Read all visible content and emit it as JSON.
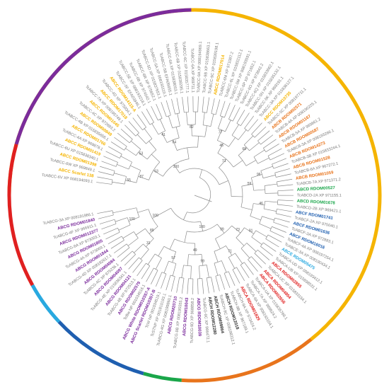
{
  "colors": {
    "tree": "#8c8c8c",
    "gray_label": "#7a7a7a",
    "black_label": "#333333",
    "ABCA": "#e02020",
    "ABCB": "#e8741c",
    "ABCC": "#f5b400",
    "ABCD": "#1aa64a",
    "ABCE": "#29a9e0",
    "ABCF": "#1f5fb0",
    "ABCG": "#7b2c9c",
    "ABCH": "#333333"
  },
  "arcs": [
    {
      "family": "ABCC",
      "start": -90,
      "end": 141
    },
    {
      "family": "ABCB",
      "start": 141,
      "end": 184
    },
    {
      "family": "ABCD",
      "start": 184,
      "end": 196
    },
    {
      "family": "ABCF",
      "start": 196,
      "end": 227
    },
    {
      "family": "ABCE",
      "start": 227,
      "end": 241
    },
    {
      "family": "ABCA",
      "start": 241,
      "end": 286
    },
    {
      "family": "ABCG",
      "start": 286,
      "end": 359
    }
  ],
  "leaves": [
    {
      "text": "TcABCC-6V XP 008194093.1",
      "family": "gray"
    },
    {
      "text": "ABCC Scarlet 138",
      "family": "ABCC",
      "bold": true
    },
    {
      "text": "TcABCC-6W XP 969849.1",
      "family": "gray"
    },
    {
      "text": "ABCC RDOM01398",
      "family": "ABCC",
      "bold": true
    },
    {
      "text": "TcABCC-6U XP 015838340.1",
      "family": "gray"
    },
    {
      "text": "ABCC RDOM01419",
      "family": "ABCC",
      "bold": true
    },
    {
      "text": "TcABCC-4A XP 969878.1",
      "family": "gray"
    },
    {
      "text": "ABCC RDOM01766",
      "family": "ABCC",
      "bold": true
    },
    {
      "text": "TcABCC-4B XP 015835656.1",
      "family": "gray"
    },
    {
      "text": "ABCC RDOM00849",
      "family": "ABCC",
      "bold": true
    },
    {
      "text": "TcABCC-4C XP 972693.2",
      "family": "gray"
    },
    {
      "text": "ABCC RDOM01045",
      "family": "ABCC",
      "bold": true
    },
    {
      "text": "TcABCC-7A XP 008195749.1",
      "family": "gray"
    },
    {
      "text": "ABCC RDOM17018",
      "family": "ABCC",
      "bold": true
    },
    {
      "text": "TcABCC-4D XP 975034.1",
      "family": "gray"
    },
    {
      "text": "ABCC RDOM14115-A",
      "family": "ABCC",
      "bold": true
    },
    {
      "text": "TcABCC-5F EFA03946.1",
      "family": "gray"
    },
    {
      "text": "TcABCC-5E XP 008193218.1",
      "family": "gray"
    },
    {
      "text": "TcABCC-6B XP 974042.1",
      "family": "gray"
    },
    {
      "text": "TcABCC-6R XP 975652.1",
      "family": "gray"
    },
    {
      "text": "TcABCC-5D XP 015837651.1",
      "family": "gray"
    },
    {
      "text": "TcABCC-5A XP 008193119.1",
      "family": "gray"
    },
    {
      "text": "TcABCC-5B EFA05655.1",
      "family": "gray"
    },
    {
      "text": "TcABCC-6A XP 015838053.1",
      "family": "gray"
    },
    {
      "text": "TcABCC-6B XP 015838295.1",
      "family": "gray"
    },
    {
      "text": "TcABCC-6C XP 015835777.1",
      "family": "gray"
    },
    {
      "text": "TcABCC-6A XP 969711.1",
      "family": "gray"
    },
    {
      "text": "TcABCC-9A XP 008194969.1",
      "family": "gray"
    },
    {
      "text": "TcABCC-9B XP 015838663.1",
      "family": "gray"
    },
    {
      "text": "TcABCC-9C XP 015839198.1",
      "family": "gray"
    },
    {
      "text": "ABCC RDOM017014",
      "family": "ABCC",
      "bold": true
    },
    {
      "text": "TcABCC-6M XP 971087.2",
      "family": "gray"
    },
    {
      "text": "TcABCC-6L XP 015832112.1",
      "family": "gray"
    },
    {
      "text": "TcABCC-5M XP 008193591.1",
      "family": "gray"
    },
    {
      "text": "TcABCC-6P XP 971652.1",
      "family": "gray"
    },
    {
      "text": "TcABCC-6O XP 973842.2",
      "family": "gray"
    },
    {
      "text": "TcABCC-6Q XP 015833662.1",
      "family": "gray"
    },
    {
      "text": "TcABCC-5N XP 015835132.1",
      "family": "gray"
    },
    {
      "text": "TcABCC-5K XP 969191.1",
      "family": "gray"
    },
    {
      "text": "TcABCC-3A XP 015836127.1",
      "family": "gray"
    },
    {
      "text": "ABCC RDOM10735",
      "family": "ABCC",
      "bold": true
    },
    {
      "text": "TcABCC-5C XP 008197711.1",
      "family": "gray"
    },
    {
      "text": "ABCB RDOM02571",
      "family": "ABCB",
      "bold": true
    },
    {
      "text": "TcABCB-4A XP 008190225.1",
      "family": "gray"
    },
    {
      "text": "ABCB RDOM01167",
      "family": "ABCB",
      "bold": true
    },
    {
      "text": "TcABCB-5A XP 969861.2",
      "family": "gray"
    },
    {
      "text": "ABCB RDOM00587",
      "family": "ABCB",
      "bold": true
    },
    {
      "text": "TcABCB-3A XP 008193266.1",
      "family": "gray"
    },
    {
      "text": "ABCB RDOM14273",
      "family": "ABCB",
      "bold": true
    },
    {
      "text": "TcABCB-3B XP 015833244.1",
      "family": "gray"
    },
    {
      "text": "ABCB RDOM01528",
      "family": "ABCB",
      "bold": true
    },
    {
      "text": "TcABCB-6A XP 967272.1",
      "family": "gray"
    },
    {
      "text": "ABCB RDOM01059",
      "family": "ABCB",
      "bold": true
    },
    {
      "text": "TcABCB-7A XP 971371.2",
      "family": "gray"
    },
    {
      "text": "ABCD RDOM00527",
      "family": "ABCD",
      "bold": true
    },
    {
      "text": "TcABCD-2A XP 971155.1",
      "family": "gray"
    },
    {
      "text": "ABCD RDOM01678",
      "family": "ABCD",
      "bold": true
    },
    {
      "text": "TcABCD-2B XP 969421.1",
      "family": "gray"
    },
    {
      "text": "ABCF RDOM01741",
      "family": "ABCF",
      "bold": true
    },
    {
      "text": "TcABCF-2A XP 975040.1",
      "family": "gray"
    },
    {
      "text": "ABCF RDOM01636",
      "family": "ABCF",
      "bold": true
    },
    {
      "text": "TcABCF-3A XP 972883.1",
      "family": "gray"
    },
    {
      "text": "ABCF RDOM16016",
      "family": "ABCF",
      "bold": true
    },
    {
      "text": "TcABCF-4A XP 008197254.1",
      "family": "gray"
    },
    {
      "text": "TcABCE-3A XP 008190434.1",
      "family": "gray"
    },
    {
      "text": "ABCE RDOM05475",
      "family": "ABCE",
      "bold": true
    },
    {
      "text": "TcABCA-UD XP 008193412.1",
      "family": "gray"
    },
    {
      "text": "TcABCA-UB XP 015838531.1",
      "family": "gray"
    },
    {
      "text": "ABCA RDOM02855",
      "family": "ABCA",
      "bold": true
    },
    {
      "text": "TcABCA-UC XP 015833154.1",
      "family": "gray"
    },
    {
      "text": "ABCA RDOM04854",
      "family": "ABCA",
      "bold": true
    },
    {
      "text": "ABCA RDOM02656",
      "family": "ABCA",
      "bold": true
    },
    {
      "text": "TcABCA-UA XP 015835768.1",
      "family": "gray"
    },
    {
      "text": "TcABCA-7A XP 969624.2",
      "family": "gray"
    },
    {
      "text": "TcABCA-9A XP 008193104.1",
      "family": "gray"
    },
    {
      "text": "ABCA RDOM01829",
      "family": "ABCA",
      "bold": true
    },
    {
      "text": "TcABCH-9A XP 973424.2",
      "family": "gray"
    },
    {
      "text": "TcABCH-9B XP 967189.1",
      "family": "gray"
    },
    {
      "text": "ABCH RDOM12018",
      "family": "ABCH",
      "bold": true
    },
    {
      "text": "TcABCH-9C XP 008198312.1",
      "family": "gray"
    },
    {
      "text": "ABCH RDOM09864",
      "family": "ABCH",
      "bold": true
    },
    {
      "text": "ABCH RDOM12280",
      "family": "ABCH",
      "bold": true
    },
    {
      "text": "TcABCG-9C XP 966472.1",
      "family": "gray"
    },
    {
      "text": "ABCG RDOM10039",
      "family": "ABCG",
      "bold": true
    },
    {
      "text": "TcABCG-9D XP 968858.2",
      "family": "gray"
    },
    {
      "text": "ABCG RDOM10043",
      "family": "ABCG",
      "bold": true
    },
    {
      "text": "TcABCG-9B XP 008195555.2",
      "family": "gray"
    },
    {
      "text": "ABCG RDOM20710",
      "family": "ABCG",
      "bold": true
    },
    {
      "text": "TcABCG-4G XP 008199860.1",
      "family": "gray"
    },
    {
      "text": "TcSTNP XP 001810193.1",
      "family": "gray"
    },
    {
      "text": "TcW NP 001034519.1",
      "family": "gray"
    },
    {
      "text": "ABCG Scarlet RDOM10357-B",
      "family": "ABCG",
      "bold": true
    },
    {
      "text": "ABCG White RDOM010357-A",
      "family": "ABCG",
      "bold": true
    },
    {
      "text": "TcBw NP 001034516.1",
      "family": "gray"
    },
    {
      "text": "ABCG RDOM02579",
      "family": "ABCG",
      "bold": true
    },
    {
      "text": "TcABCG-4B XP 972513.1",
      "family": "gray"
    },
    {
      "text": "ABCG RDOM04121",
      "family": "ABCG",
      "bold": true
    },
    {
      "text": "TcABCG-4E XP 015836341.1",
      "family": "gray"
    },
    {
      "text": "ABCG RDOM04097",
      "family": "ABCG",
      "bold": true
    },
    {
      "text": "TcABCG-4C XP 975236.1",
      "family": "gray"
    },
    {
      "text": "ABCG RDOM04084",
      "family": "ABCG",
      "bold": true
    },
    {
      "text": "TcABCG-4D XP 008192617.1",
      "family": "gray"
    },
    {
      "text": "ABCG RDOM01844",
      "family": "ABCG",
      "bold": true
    },
    {
      "text": "TcABCG-4A XP 973069.1",
      "family": "gray"
    },
    {
      "text": "ABCG RDOM01805",
      "family": "ABCG",
      "bold": true
    },
    {
      "text": "TcABCG-8A XP 973003.1",
      "family": "gray"
    },
    {
      "text": "ABCG RDOM012377",
      "family": "ABCG",
      "bold": true
    },
    {
      "text": "TcABCG-4F XP 966911.1",
      "family": "gray"
    },
    {
      "text": "ABCG RDOM01840",
      "family": "ABCG",
      "bold": true
    },
    {
      "text": "TcABCG-3A XP 008191986.1",
      "family": "gray"
    }
  ],
  "bootstrap_values": [
    "55",
    "53",
    "41",
    "82",
    "77",
    "68",
    "96",
    "46",
    "91",
    "71",
    "99",
    "57",
    "31",
    "100",
    "87",
    "64",
    "45",
    "59",
    "73",
    "49",
    "89",
    "63",
    "71",
    "99",
    "100",
    "100",
    "100",
    "100",
    "77",
    "49"
  ]
}
